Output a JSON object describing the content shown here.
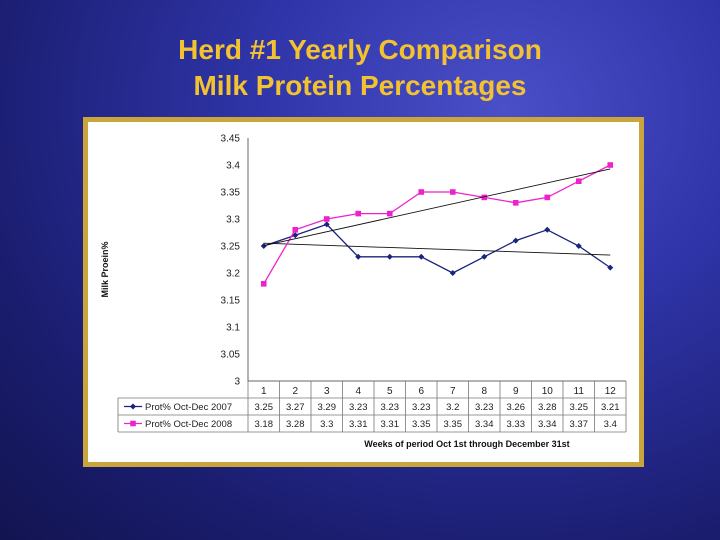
{
  "slide": {
    "title_line1": "Herd #1 Yearly Comparison",
    "title_line2": "Milk Protein Percentages"
  },
  "chart_data": {
    "type": "line",
    "title": "",
    "xlabel": "Weeks of period Oct 1st through December 31st",
    "ylabel": "Milk Proein%",
    "ylim": [
      3,
      3.45
    ],
    "yticks": [
      "3",
      "3.05",
      "3.1",
      "3.15",
      "3.2",
      "3.25",
      "3.3",
      "3.35",
      "3.4",
      "3.45"
    ],
    "categories": [
      "1",
      "2",
      "3",
      "4",
      "5",
      "6",
      "7",
      "8",
      "9",
      "10",
      "11",
      "12"
    ],
    "trendlines": true,
    "series": [
      {
        "name": "Prot% Oct-Dec 2007",
        "color": "#1a237e",
        "marker": "diamond",
        "values": [
          3.25,
          3.27,
          3.29,
          3.23,
          3.23,
          3.23,
          3.2,
          3.23,
          3.26,
          3.28,
          3.25,
          3.21
        ],
        "labels": [
          "3.25",
          "3.27",
          "3.29",
          "3.23",
          "3.23",
          "3.23",
          "3.2",
          "3.23",
          "3.26",
          "3.28",
          "3.25",
          "3.21"
        ]
      },
      {
        "name": "Prot% Oct-Dec 2008",
        "color": "#ee22cc",
        "marker": "square",
        "values": [
          3.18,
          3.28,
          3.3,
          3.31,
          3.31,
          3.35,
          3.35,
          3.34,
          3.33,
          3.34,
          3.37,
          3.4
        ],
        "labels": [
          "3.18",
          "3.28",
          "3.3",
          "3.31",
          "3.31",
          "3.35",
          "3.35",
          "3.34",
          "3.33",
          "3.34",
          "3.37",
          "3.4"
        ]
      }
    ]
  }
}
